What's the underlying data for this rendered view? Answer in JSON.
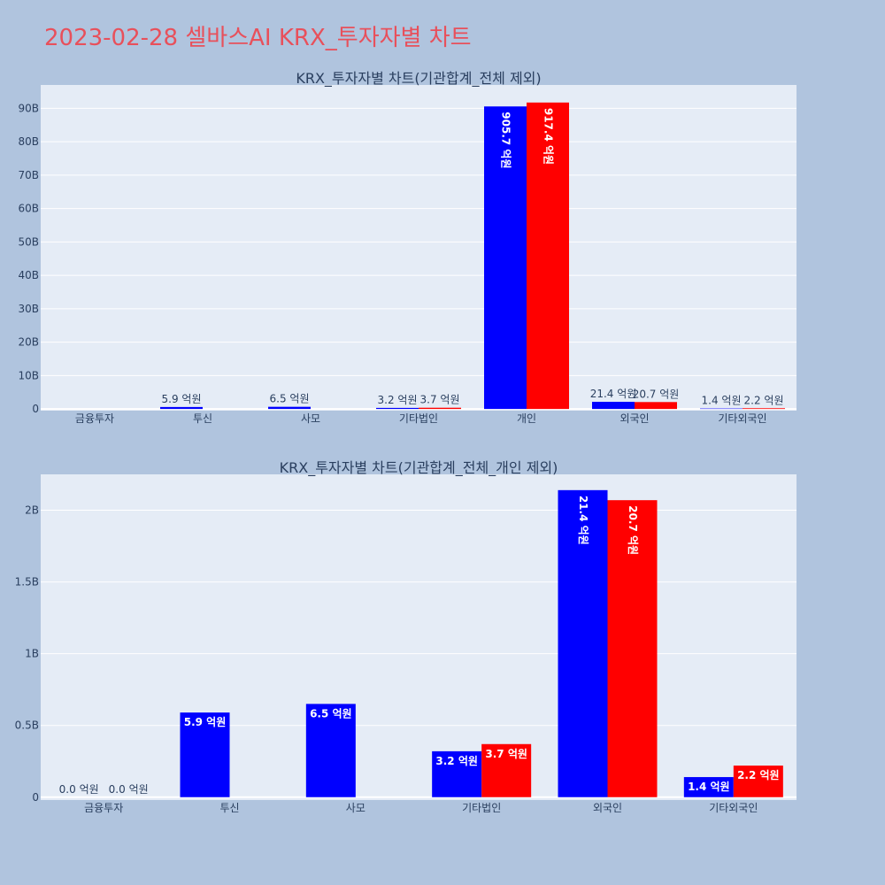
{
  "page": {
    "title": "2023-02-28 셀바스AI KRX_투자자별 차트"
  },
  "colors": {
    "background": "#b0c4de",
    "plot_bg": "#e5ecf6",
    "gridline": "#ffffff",
    "title_text": "#e8505b",
    "axis_text": "#2a3f5f",
    "buy": "#0000ff",
    "sell": "#ff0000"
  },
  "chart_data": [
    {
      "type": "bar",
      "title": "KRX_투자자별 차트(기관합계_전체 제외)",
      "categories": [
        "금융투자",
        "투신",
        "사모",
        "기타법인",
        "개인",
        "외국인",
        "기타외국인"
      ],
      "series": [
        {
          "color": "#0000ff",
          "values": [
            0,
            590000000,
            650000000,
            320000000,
            90570000000,
            2140000000,
            140000000
          ],
          "labels": [
            "",
            "5.9 억원",
            "6.5 억원",
            "3.2 억원",
            "905.7 억원",
            "21.4 억원",
            "1.4 억원"
          ]
        },
        {
          "color": "#ff0000",
          "values": [
            0,
            0,
            0,
            370000000,
            91740000000,
            2070000000,
            220000000
          ],
          "labels": [
            "",
            "",
            "",
            "3.7 억원",
            "917.4 억원",
            "20.7 억원",
            "2.2 억원"
          ]
        }
      ],
      "yticks": [
        0,
        10000000000,
        20000000000,
        30000000000,
        40000000000,
        50000000000,
        60000000000,
        70000000000,
        80000000000,
        90000000000
      ],
      "ytick_labels": [
        "0",
        "10B",
        "20B",
        "30B",
        "40B",
        "50B",
        "60B",
        "70B",
        "80B",
        "90B"
      ],
      "ylim": [
        -500000000,
        97000000000
      ],
      "grid": true,
      "legend": "none"
    },
    {
      "type": "bar",
      "title": "KRX_투자자별 차트(기관합계_전체_개인 제외)",
      "categories": [
        "금융투자",
        "투신",
        "사모",
        "기타법인",
        "외국인",
        "기타외국인"
      ],
      "series": [
        {
          "color": "#0000ff",
          "values": [
            0,
            590000000,
            650000000,
            320000000,
            2140000000,
            140000000
          ],
          "labels": [
            "0.0 억원",
            "5.9 억원",
            "6.5 억원",
            "3.2 억원",
            "21.4 억원",
            "1.4 억원"
          ]
        },
        {
          "color": "#ff0000",
          "values": [
            0,
            0,
            0,
            370000000,
            2070000000,
            220000000
          ],
          "labels": [
            "0.0 억원",
            "",
            "",
            "3.7 억원",
            "20.7 억원",
            "2.2 억원"
          ]
        }
      ],
      "yticks": [
        0,
        500000000,
        1000000000,
        1500000000,
        2000000000
      ],
      "ytick_labels": [
        "0",
        "0.5B",
        "1B",
        "1.5B",
        "2B"
      ],
      "ylim": [
        -20000000,
        2250000000
      ],
      "grid": true,
      "legend": "none"
    }
  ]
}
